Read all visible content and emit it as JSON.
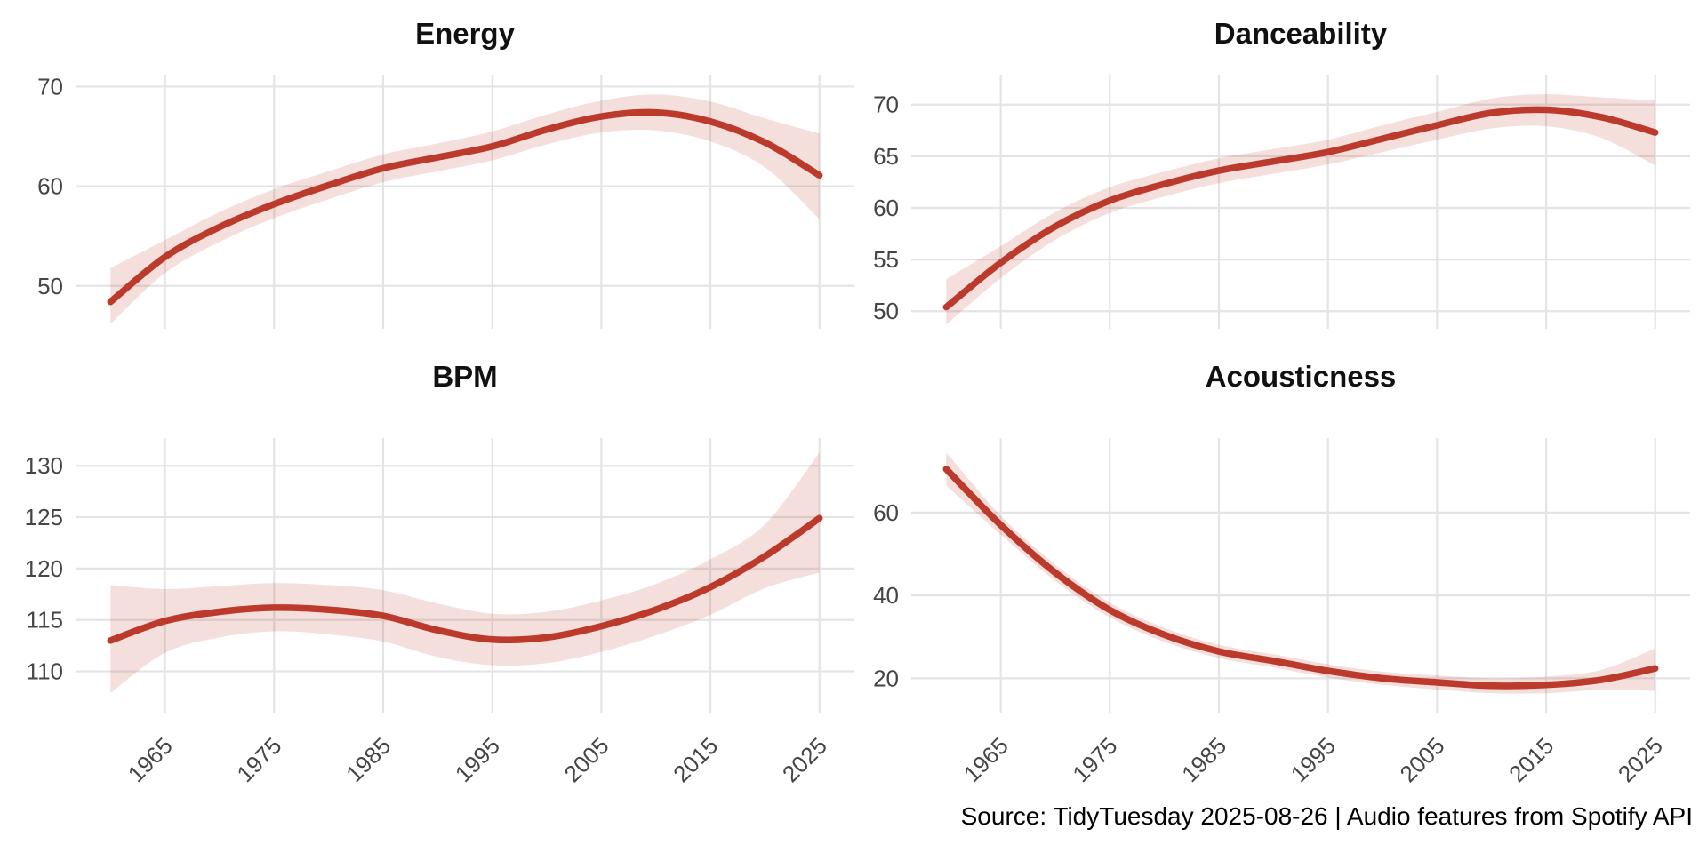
{
  "figure": {
    "caption": "Source: TidyTuesday 2025-08-26 | Audio features from Spotify API"
  },
  "style": {
    "line_color": "#BB3A2B",
    "ribbon_color": "#BB3A2B",
    "ribbon_opacity": 0.16,
    "grid_color": "#E4E4E4",
    "tick_label_color": "#454545",
    "title_color": "#111111",
    "background": "#FFFFFF"
  },
  "chart_data": [
    {
      "type": "line",
      "title": "Energy",
      "smoothed": true,
      "legend": "none",
      "grid": "major",
      "x": [
        1960,
        1965,
        1970,
        1975,
        1980,
        1985,
        1990,
        1995,
        2000,
        2005,
        2010,
        2015,
        2020,
        2025
      ],
      "values": [
        48.4,
        52.9,
        55.9,
        58.2,
        60.1,
        61.8,
        62.9,
        64.0,
        65.7,
        67.0,
        67.4,
        66.5,
        64.4,
        61.1
      ],
      "ci_low": [
        46.2,
        51.3,
        54.4,
        56.8,
        58.7,
        60.4,
        61.5,
        62.6,
        64.2,
        65.4,
        65.6,
        64.5,
        61.9,
        56.7
      ],
      "ci_high": [
        51.8,
        54.6,
        57.4,
        59.7,
        61.5,
        63.2,
        64.3,
        65.5,
        67.2,
        68.6,
        69.2,
        68.5,
        66.8,
        65.3
      ],
      "xticks": [
        1965,
        1975,
        1985,
        1995,
        2005,
        2015,
        2025
      ],
      "yticks": [
        50,
        60,
        70
      ],
      "xlim": [
        1956.8,
        2028.2
      ],
      "ylim": [
        45.7,
        71.2
      ],
      "show_x_labels": false
    },
    {
      "type": "line",
      "title": "Danceability",
      "smoothed": true,
      "legend": "none",
      "grid": "major",
      "x": [
        1960,
        1965,
        1970,
        1975,
        1980,
        1985,
        1990,
        1995,
        2000,
        2005,
        2010,
        2015,
        2020,
        2025
      ],
      "values": [
        50.4,
        54.7,
        58.2,
        60.7,
        62.3,
        63.6,
        64.5,
        65.4,
        66.7,
        68.0,
        69.2,
        69.5,
        68.8,
        67.3
      ],
      "ci_low": [
        48.7,
        53.2,
        56.9,
        59.5,
        61.1,
        62.4,
        63.3,
        64.2,
        65.4,
        66.6,
        67.7,
        67.9,
        66.8,
        64.1
      ],
      "ci_high": [
        53.1,
        56.3,
        59.6,
        62.0,
        63.5,
        64.8,
        65.7,
        66.6,
        68.0,
        69.3,
        70.6,
        71.0,
        70.7,
        70.4
      ],
      "xticks": [
        1965,
        1975,
        1985,
        1995,
        2005,
        2015,
        2025
      ],
      "yticks": [
        50,
        55,
        60,
        65,
        70
      ],
      "xlim": [
        1956.8,
        2028.2
      ],
      "ylim": [
        48.3,
        72.9
      ],
      "show_x_labels": false
    },
    {
      "type": "line",
      "title": "BPM",
      "smoothed": true,
      "legend": "none",
      "grid": "major",
      "x": [
        1960,
        1965,
        1970,
        1975,
        1980,
        1985,
        1990,
        1995,
        2000,
        2005,
        2010,
        2015,
        2020,
        2025
      ],
      "values": [
        113.0,
        114.9,
        115.8,
        116.2,
        116.0,
        115.4,
        114.0,
        113.1,
        113.3,
        114.4,
        116.0,
        118.2,
        121.2,
        124.9
      ],
      "ci_low": [
        107.9,
        111.8,
        113.3,
        113.9,
        113.6,
        112.9,
        111.4,
        110.6,
        110.8,
        111.9,
        113.5,
        115.5,
        118.1,
        119.6
      ],
      "ci_high": [
        118.4,
        118.0,
        118.3,
        118.6,
        118.4,
        117.9,
        116.6,
        115.6,
        115.8,
        116.9,
        118.5,
        120.9,
        124.3,
        131.3
      ],
      "xticks": [
        1965,
        1975,
        1985,
        1995,
        2005,
        2015,
        2025
      ],
      "yticks": [
        110,
        115,
        120,
        125,
        130
      ],
      "xlim": [
        1956.8,
        2028.2
      ],
      "ylim": [
        105.9,
        132.7
      ],
      "show_x_labels": true
    },
    {
      "type": "line",
      "title": "Acousticness",
      "smoothed": true,
      "legend": "none",
      "grid": "major",
      "x": [
        1960,
        1965,
        1970,
        1975,
        1980,
        1985,
        1990,
        1995,
        2000,
        2005,
        2010,
        2015,
        2020,
        2025
      ],
      "values": [
        70.5,
        57.0,
        45.5,
        36.5,
        30.5,
        26.5,
        24.2,
        21.8,
        20.0,
        19.0,
        18.2,
        18.4,
        19.6,
        22.4
      ],
      "ci_low": [
        66.5,
        54.7,
        43.5,
        34.7,
        28.8,
        24.9,
        22.6,
        20.2,
        18.4,
        17.3,
        16.4,
        16.4,
        17.2,
        17.0
      ],
      "ci_high": [
        74.5,
        59.3,
        47.5,
        38.3,
        32.2,
        28.1,
        25.8,
        23.4,
        21.6,
        20.7,
        20.0,
        20.4,
        22.0,
        27.2
      ],
      "xticks": [
        1965,
        1975,
        1985,
        1995,
        2005,
        2015,
        2025
      ],
      "yticks": [
        20,
        40,
        60
      ],
      "xlim": [
        1956.8,
        2028.2
      ],
      "ylim": [
        11.5,
        78.0
      ],
      "show_x_labels": true
    }
  ]
}
